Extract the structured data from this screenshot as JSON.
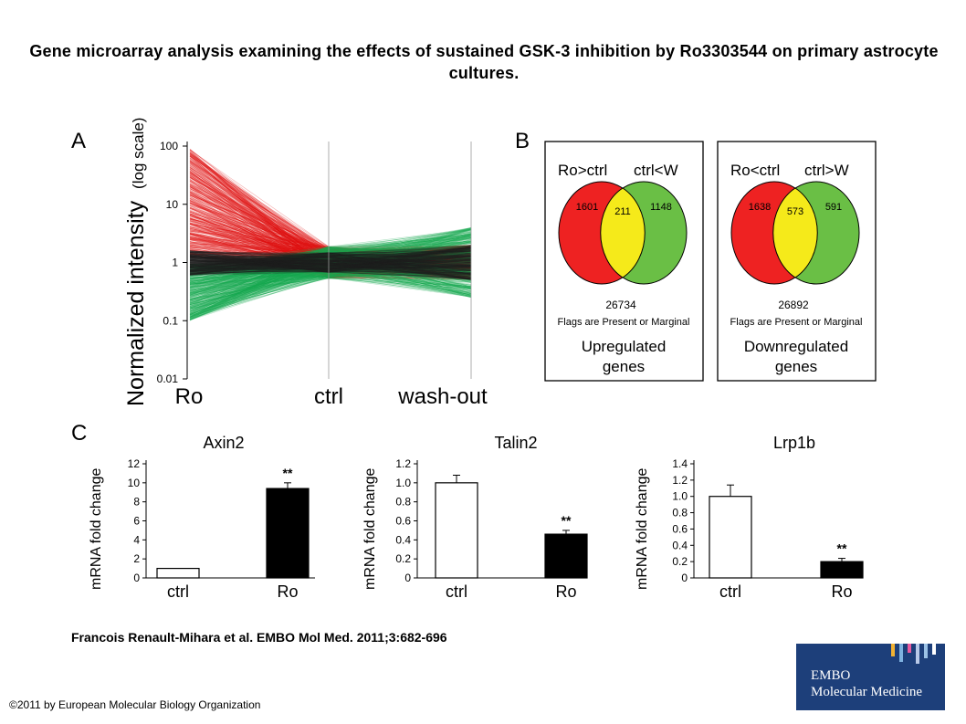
{
  "page": {
    "title": "Gene microarray analysis examining the effects of sustained GSK-3 inhibition by Ro3303544 on primary astrocyte cultures.",
    "citation": "Francois Renault-Mihara et al. EMBO Mol Med. 2011;3:682-696",
    "copyright": "©2011 by European Molecular Biology Organization",
    "logo": {
      "line1": "EMBO",
      "line2": "Molecular Medicine",
      "stripe_colors": [
        "#f2b233",
        "#7fb2e0",
        "#e85aa0",
        "#b8c9e8",
        "#9bc2e6",
        "#ffffff"
      ]
    }
  },
  "panel_labels": {
    "a": "A",
    "b": "B",
    "c": "C"
  },
  "chart_data": [
    {
      "type": "line",
      "panel": "A",
      "ylabel": "Normalized intensity",
      "ylabel_suffix": "(log scale)",
      "y_scale": "log",
      "yticks": [
        "100",
        "10",
        "1",
        "0.1",
        "0.01"
      ],
      "ylim": [
        0.01,
        100
      ],
      "categories": [
        "Ro",
        "ctrl",
        "wash-out"
      ],
      "series": [
        {
          "color": "#e01010",
          "start_range": [
            1.2,
            90
          ]
        },
        {
          "color": "#18a850",
          "start_range": [
            0.1,
            0.95
          ]
        },
        {
          "color": "#202020",
          "start_range": [
            0.6,
            1.6
          ]
        }
      ]
    },
    {
      "type": "venn",
      "panel": "B",
      "diagrams": [
        {
          "left_label": "Ro>ctrl",
          "right_label": "ctrl<W",
          "left_only": 1601,
          "overlap": 211,
          "right_only": 1148,
          "total": "26734",
          "note": "Flags are Present or Marginal",
          "caption1": "Upregulated",
          "caption2": "genes"
        },
        {
          "left_label": "Ro<ctrl",
          "right_label": "ctrl>W",
          "left_only": 1638,
          "overlap": 573,
          "right_only": 591,
          "total": "26892",
          "note": "Flags are Present or Marginal",
          "caption1": "Downregulated",
          "caption2": "genes"
        }
      ],
      "colors": {
        "left": "#ee2222",
        "overlap": "#f5ea1a",
        "right": "#6abf45"
      }
    },
    {
      "type": "bar",
      "panel": "C",
      "title": "Axin2",
      "ylabel": "mRNA fold change",
      "categories": [
        "ctrl",
        "Ro"
      ],
      "values": [
        1.0,
        9.4
      ],
      "errors": [
        0,
        0.6
      ],
      "yticks": [
        0,
        2,
        4,
        6,
        8,
        10,
        12
      ],
      "ylim": [
        0,
        12
      ],
      "fills": [
        "#ffffff",
        "#000000"
      ],
      "annotations": [
        "",
        "**"
      ]
    },
    {
      "type": "bar",
      "panel": "C",
      "title": "Talin2",
      "ylabel": "mRNA fold change",
      "categories": [
        "ctrl",
        "Ro"
      ],
      "values": [
        1.0,
        0.46
      ],
      "errors": [
        0.08,
        0.04
      ],
      "yticks": [
        "0",
        "0.2",
        "0.4",
        "0.6",
        "0.8",
        "1.0",
        "1.2"
      ],
      "ylim": [
        0,
        1.2
      ],
      "fills": [
        "#ffffff",
        "#000000"
      ],
      "annotations": [
        "",
        "**"
      ]
    },
    {
      "type": "bar",
      "panel": "C",
      "title": "Lrp1b",
      "ylabel": "mRNA fold change",
      "categories": [
        "ctrl",
        "Ro"
      ],
      "values": [
        1.0,
        0.2
      ],
      "errors": [
        0.14,
        0.04
      ],
      "yticks": [
        "0",
        "0.2",
        "0.4",
        "0.6",
        "0.8",
        "1.0",
        "1.2",
        "1.4"
      ],
      "ylim": [
        0,
        1.4
      ],
      "fills": [
        "#ffffff",
        "#000000"
      ],
      "annotations": [
        "",
        "**"
      ]
    }
  ]
}
